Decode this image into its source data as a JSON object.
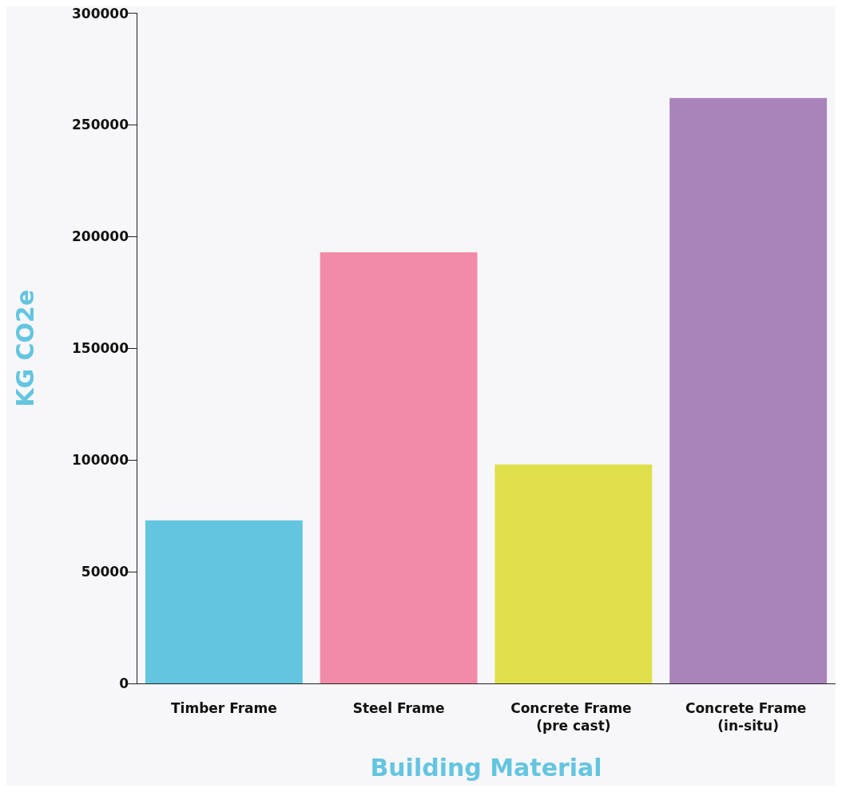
{
  "chart_data": {
    "type": "bar",
    "xlabel": "Building Material",
    "ylabel": "KG CO2e",
    "categories": [
      "Timber Frame",
      "Steel Frame",
      "Concrete Frame (pre cast)",
      "Concrete Frame (in-situ)"
    ],
    "values": [
      73000,
      193000,
      98000,
      262000
    ],
    "colors": [
      "#64c5e0",
      "#f28ba8",
      "#dfe04b",
      "#a984ba"
    ],
    "ylim": [
      0,
      300000
    ],
    "yticks": [
      0,
      50000,
      100000,
      150000,
      200000,
      250000,
      300000
    ],
    "grid": false
  }
}
